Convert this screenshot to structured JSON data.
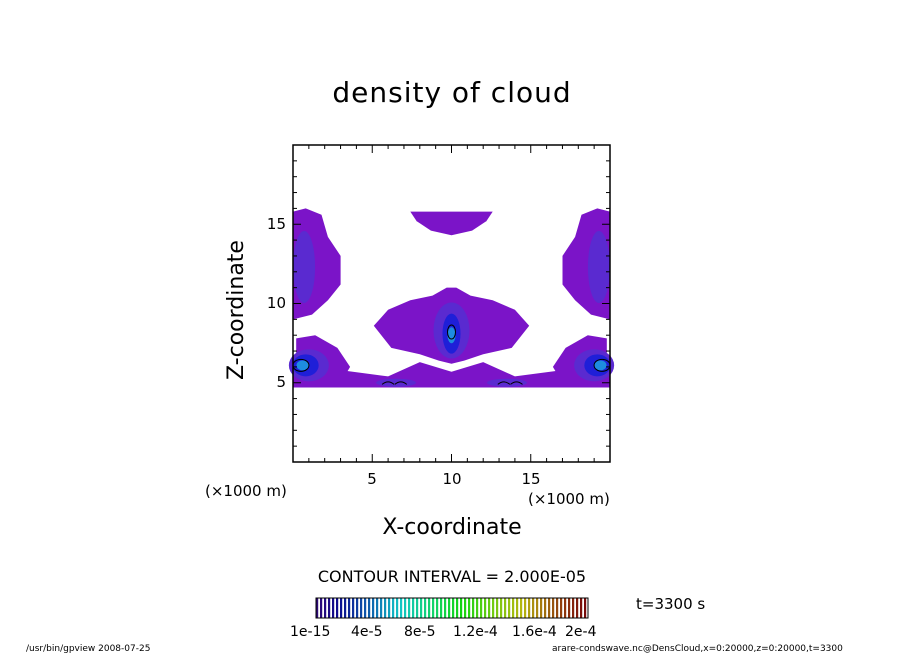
{
  "chart_data": {
    "type": "contour",
    "title": "density of cloud",
    "xlabel": "X-coordinate",
    "ylabel": "Z-coordinate",
    "x_unit_label": "(×1000 m)",
    "z_unit_label": "(×1000 m)",
    "xlim": [
      0,
      20
    ],
    "ylim": [
      0,
      20
    ],
    "x_ticks": [
      "5",
      "10",
      "15"
    ],
    "y_ticks": [
      "5",
      "10",
      "15"
    ],
    "contour_interval_text": "CONTOUR INTERVAL = 2.000E-05",
    "time_text": "t=3300 s",
    "colorbar_labels": [
      "1e-15",
      "4e-5",
      "8e-5",
      "1.2e-4",
      "1.6e-4",
      "2e-4"
    ],
    "regions": [
      {
        "name": "top-center cloud",
        "x": [
          7.5,
          12.5
        ],
        "z": [
          14.5,
          16
        ]
      },
      {
        "name": "left upper cloud",
        "x": [
          0,
          3
        ],
        "z": [
          9,
          16
        ]
      },
      {
        "name": "right upper cloud",
        "x": [
          17,
          20
        ],
        "z": [
          9,
          16
        ]
      },
      {
        "name": "center plume",
        "x": [
          5,
          15
        ],
        "z": [
          7,
          11
        ],
        "peak": [
          10,
          8
        ]
      },
      {
        "name": "left base core",
        "x": [
          0,
          3
        ],
        "z": [
          5,
          7.5
        ],
        "peak": [
          0.5,
          6
        ]
      },
      {
        "name": "right base core",
        "x": [
          17,
          20
        ],
        "z": [
          5,
          7.5
        ],
        "peak": [
          19.5,
          6
        ]
      },
      {
        "name": "base layer",
        "x": [
          0,
          20
        ],
        "z": [
          4.8,
          6
        ]
      }
    ]
  },
  "colors": {
    "base": "#7b14c8",
    "mid": "#5a2ad0",
    "core": "#1f1fd8",
    "inner": "#1e8ce0"
  },
  "footer_left": "/usr/bin/gpview   2008-07-25",
  "footer_right": "arare-condswave.nc@DensCloud,x=0:20000,z=0:20000,t=3300"
}
